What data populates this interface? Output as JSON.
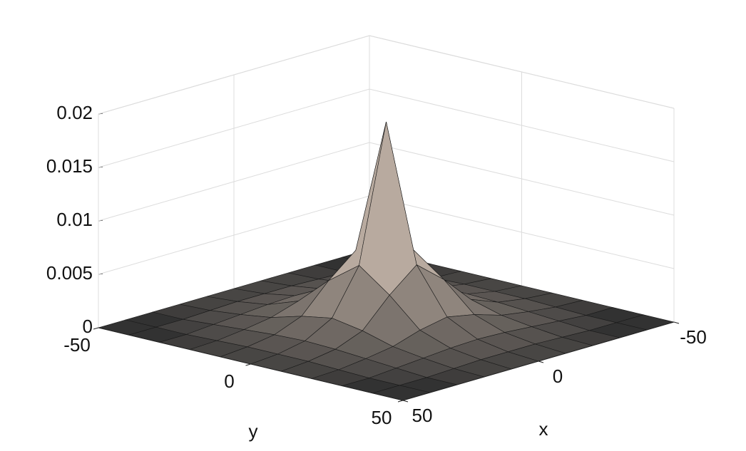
{
  "chart_data": {
    "type": "surface",
    "xlabel": "x",
    "ylabel": "y",
    "xlim": [
      -50,
      50
    ],
    "ylim": [
      -50,
      50
    ],
    "zlim": [
      0,
      0.02
    ],
    "xticks": [
      -50,
      0,
      50
    ],
    "yticks": [
      -50,
      0,
      50
    ],
    "zticks": [
      0,
      0.005,
      0.01,
      0.015,
      0.02
    ],
    "grid": true,
    "x": [
      -50,
      -40,
      -30,
      -20,
      -10,
      0,
      10,
      20,
      30,
      40,
      50
    ],
    "y": [
      -50,
      -40,
      -30,
      -20,
      -10,
      0,
      10,
      20,
      30,
      40,
      50
    ],
    "z": [
      [
        0,
        0,
        0,
        0,
        0,
        0,
        0,
        0,
        0,
        0,
        0
      ],
      [
        0,
        0,
        0,
        0.0001,
        0.0002,
        0.0002,
        0.0002,
        0.0001,
        0,
        0,
        0
      ],
      [
        0,
        0,
        0.0002,
        0.0004,
        0.0006,
        0.0007,
        0.0006,
        0.0004,
        0.0002,
        0,
        0
      ],
      [
        0,
        0.0001,
        0.0004,
        0.0008,
        0.0016,
        0.0021,
        0.0016,
        0.0008,
        0.0004,
        0.0001,
        0
      ],
      [
        0,
        0.0002,
        0.0006,
        0.0016,
        0.0042,
        0.0063,
        0.0042,
        0.0016,
        0.0006,
        0.0002,
        0
      ],
      [
        0,
        0.0002,
        0.0007,
        0.0021,
        0.0063,
        0.019,
        0.0063,
        0.0021,
        0.0007,
        0.0002,
        0
      ],
      [
        0,
        0.0002,
        0.0006,
        0.0016,
        0.0042,
        0.0063,
        0.0042,
        0.0016,
        0.0006,
        0.0002,
        0
      ],
      [
        0,
        0.0001,
        0.0004,
        0.0008,
        0.0016,
        0.0021,
        0.0016,
        0.0008,
        0.0004,
        0.0001,
        0
      ],
      [
        0,
        0,
        0.0002,
        0.0004,
        0.0006,
        0.0007,
        0.0006,
        0.0004,
        0.0002,
        0,
        0
      ],
      [
        0,
        0,
        0,
        0.0001,
        0.0002,
        0.0002,
        0.0002,
        0.0001,
        0,
        0,
        0
      ],
      [
        0,
        0,
        0,
        0,
        0,
        0,
        0,
        0,
        0,
        0,
        0
      ]
    ]
  }
}
